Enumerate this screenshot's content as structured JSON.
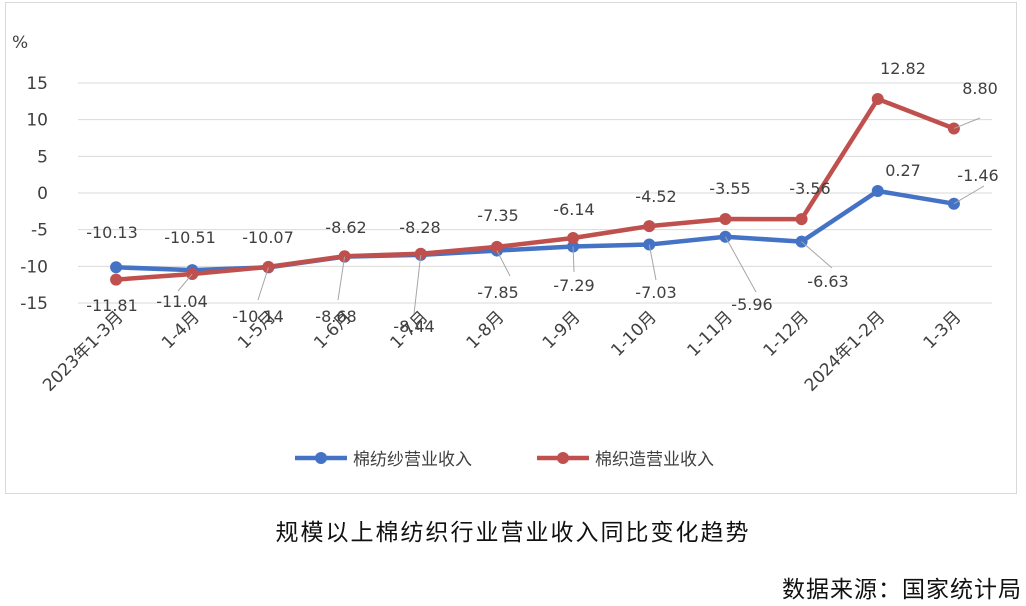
{
  "chart_data": {
    "type": "line",
    "ylabel": "%",
    "ylim": [
      -15,
      15
    ],
    "yticks": [
      15,
      10,
      5,
      0,
      -5,
      -10,
      -15
    ],
    "categories": [
      "2023年1-3月",
      "1-4月",
      "1-5月",
      "1-6月",
      "1-7月",
      "1-8月",
      "1-9月",
      "1-10月",
      "1-11月",
      "1-12月",
      "2024年1-2月",
      "1-3月"
    ],
    "series": [
      {
        "name": "棉纺纱营业收入",
        "color": "#4472C4",
        "values": [
          -10.13,
          -10.51,
          -10.14,
          -8.68,
          -8.44,
          -7.85,
          -7.29,
          -7.03,
          -5.96,
          -6.63,
          0.27,
          -1.46
        ],
        "labels": [
          "-10.13",
          "-10.51",
          "-10.14",
          "-8.68",
          "-8.44",
          "-7.85",
          "-7.29",
          "-7.03",
          "-5.96",
          "-6.63",
          "0.27",
          "-1.46"
        ]
      },
      {
        "name": "棉织造营业收入",
        "color": "#C0504D",
        "values": [
          -11.81,
          -11.04,
          -10.07,
          -8.62,
          -8.28,
          -7.35,
          -6.14,
          -4.52,
          -3.55,
          -3.56,
          12.82,
          8.8
        ],
        "labels": [
          "-11.81",
          "-11.04",
          "-10.07",
          "-8.62",
          "-8.28",
          "-7.35",
          "-6.14",
          "-4.52",
          "-3.55",
          "-3.56",
          "12.82",
          "8.80"
        ]
      }
    ],
    "grid": true,
    "legend": "bottom"
  },
  "caption": "规模以上棉纺织行业营业收入同比变化趋势",
  "source": "数据来源：国家统计局"
}
